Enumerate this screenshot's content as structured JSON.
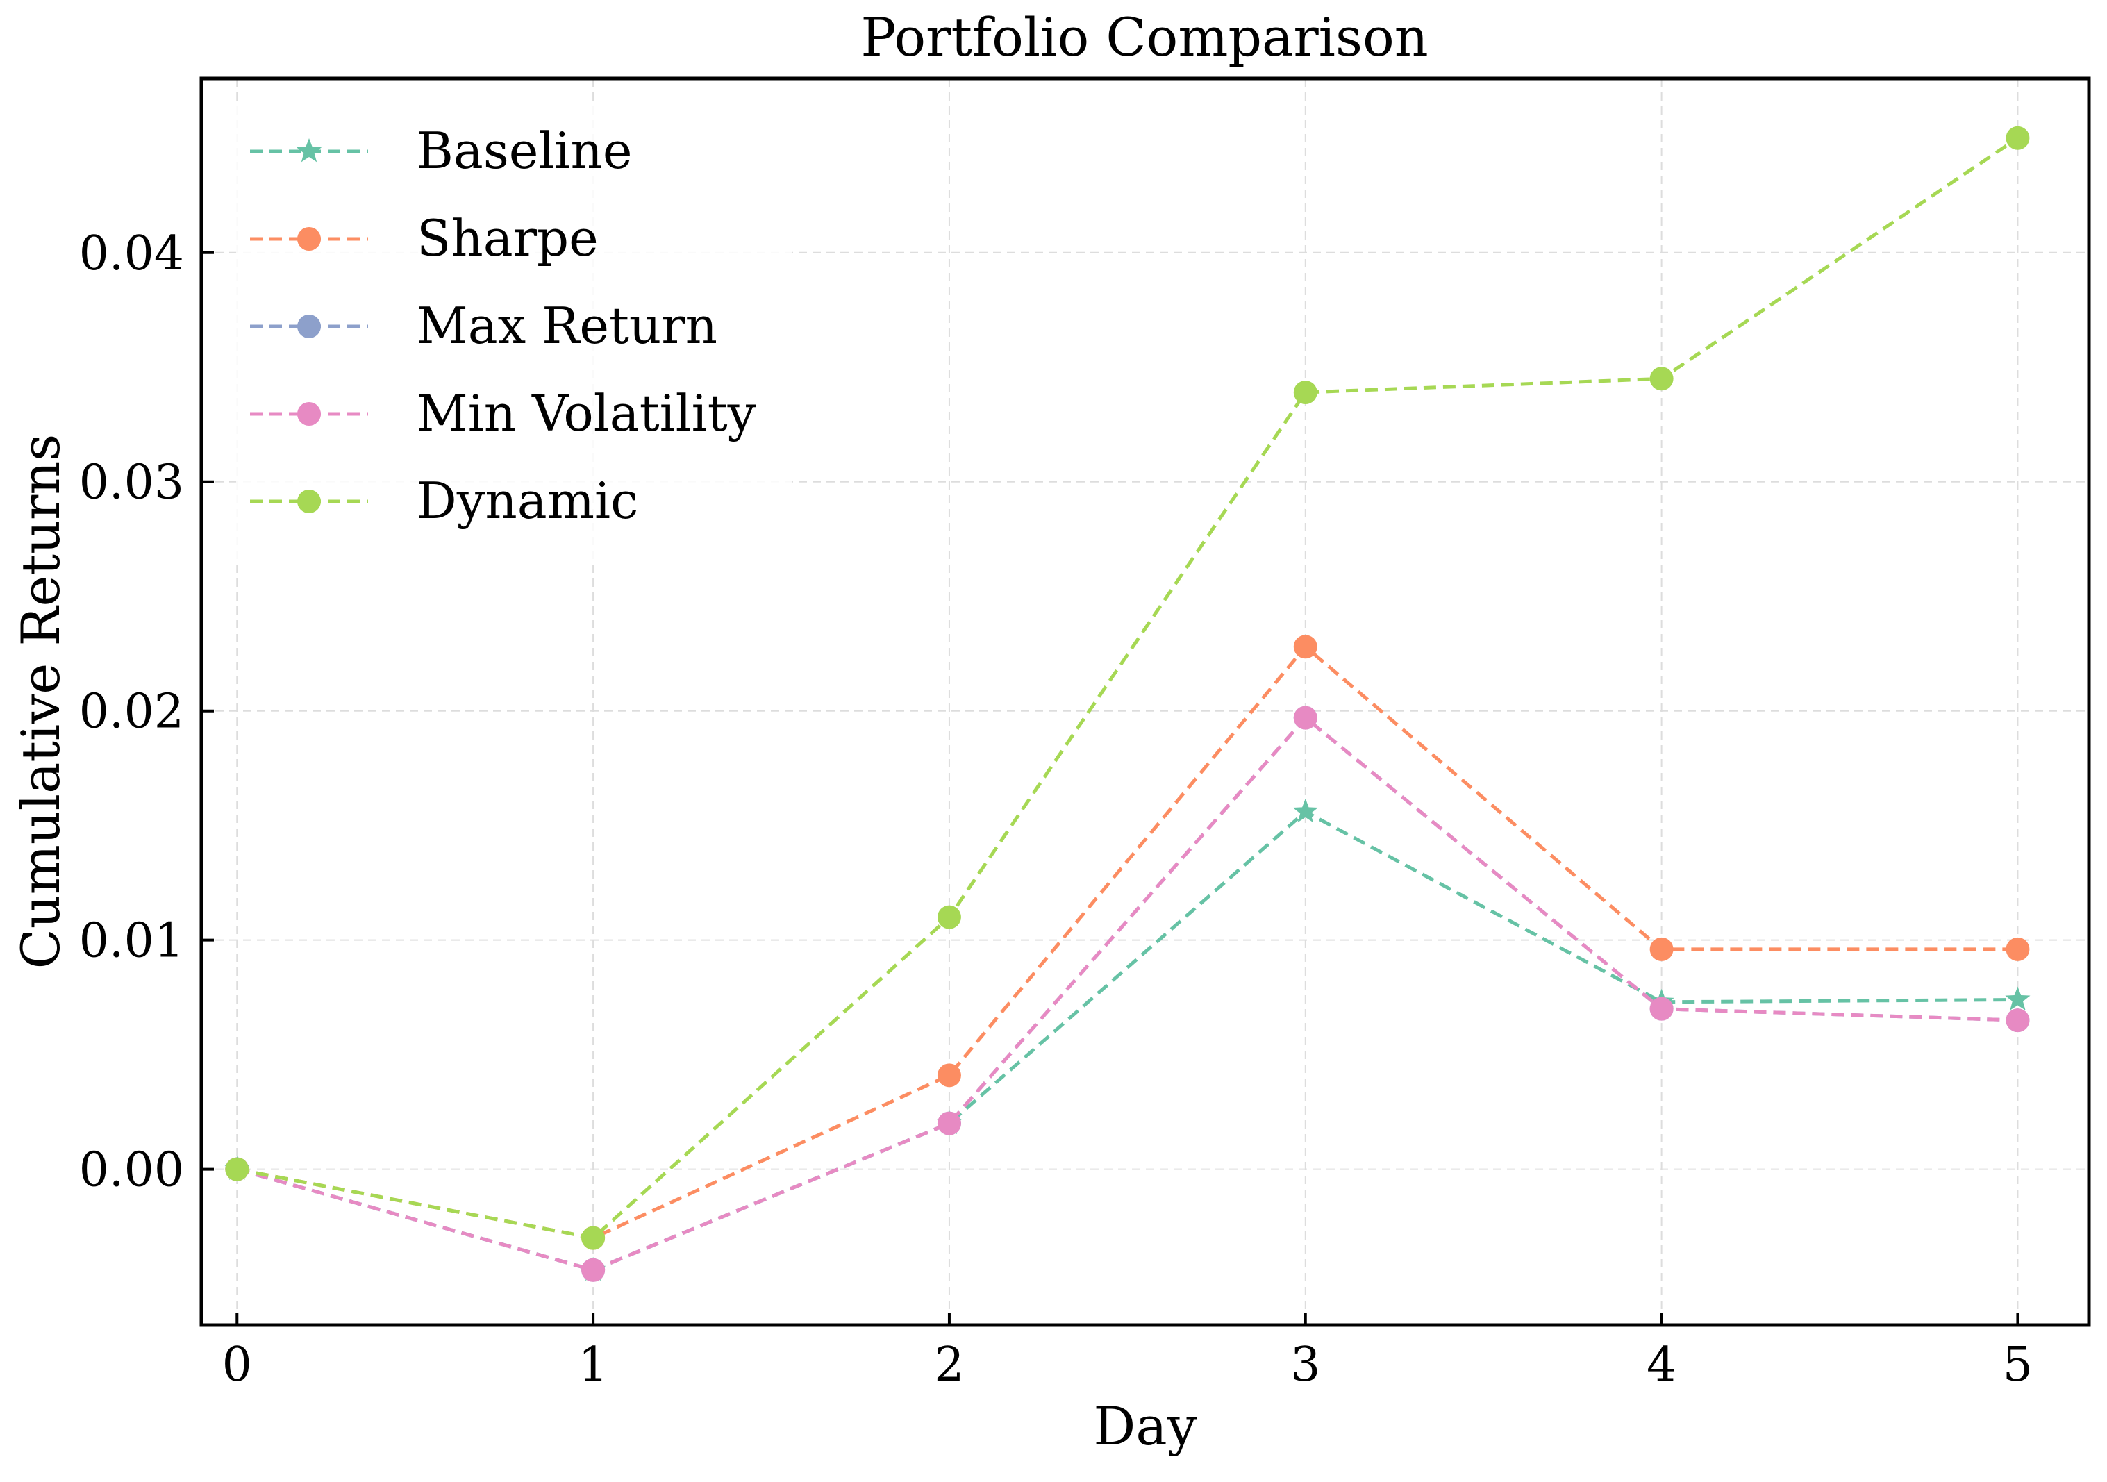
{
  "chart_data": {
    "type": "line",
    "title": "Portfolio Comparison",
    "xlabel": "Day",
    "ylabel": "Cumulative Returns",
    "x": [
      0,
      1,
      2,
      3,
      4,
      5
    ],
    "x_ticks": [
      "0",
      "1",
      "2",
      "3",
      "4",
      "5"
    ],
    "y_ticks": [
      0.0,
      0.01,
      0.02,
      0.03,
      0.04
    ],
    "y_tick_labels": [
      "0.00",
      "0.01",
      "0.02",
      "0.03",
      "0.04"
    ],
    "xlim": [
      -0.1,
      5.2
    ],
    "ylim": [
      -0.0068,
      0.0476
    ],
    "grid": true,
    "legend_position": "top-left",
    "series": [
      {
        "name": "Baseline",
        "color": "#66c2a5",
        "marker": "star",
        "values": [
          0.0,
          -0.0044,
          0.002,
          0.0156,
          0.0073,
          0.0074
        ]
      },
      {
        "name": "Sharpe",
        "color": "#fc8d62",
        "marker": "circle",
        "values": [
          0.0,
          -0.003,
          0.0041,
          0.0228,
          0.0096,
          0.0096
        ]
      },
      {
        "name": "Max Return",
        "color": "#8da0cb",
        "marker": "circle",
        "values": [
          0.0,
          -0.0044,
          0.002,
          0.0197,
          0.007,
          0.0065
        ]
      },
      {
        "name": "Min Volatility",
        "color": "#e78ac3",
        "marker": "circle",
        "values": [
          0.0,
          -0.0044,
          0.002,
          0.0197,
          0.007,
          0.0065
        ]
      },
      {
        "name": "Dynamic",
        "color": "#a6d854",
        "marker": "circle",
        "values": [
          0.0,
          -0.003,
          0.011,
          0.0339,
          0.0345,
          0.045
        ]
      }
    ]
  }
}
